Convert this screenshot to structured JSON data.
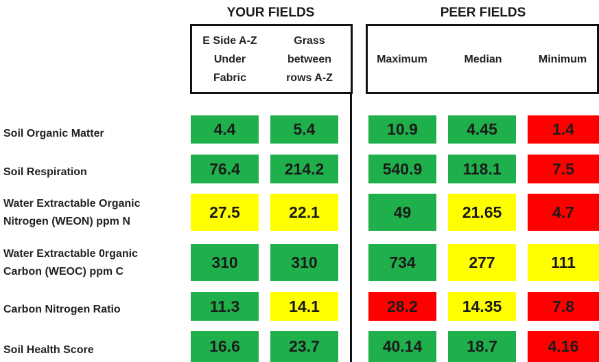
{
  "groups": {
    "your_fields": "YOUR FIELDS",
    "peer_fields": "PEER FIELDS"
  },
  "columns": [
    "E Side A-Z\nUnder\nFabric",
    "Grass\nbetween\nrows A-Z",
    "Maximum",
    "Median",
    "Minimum"
  ],
  "colors": {
    "green": "#1fb04b",
    "yellow": "#ffff00",
    "red": "#ff0000"
  },
  "rows": [
    {
      "label": "Soil Organic Matter",
      "values": [
        "4.4",
        "5.4",
        "10.9",
        "4.45",
        "1.4"
      ],
      "colors": [
        "green",
        "green",
        "green",
        "green",
        "red"
      ]
    },
    {
      "label": "Soil Respiration",
      "values": [
        "76.4",
        "214.2",
        "540.9",
        "118.1",
        "7.5"
      ],
      "colors": [
        "green",
        "green",
        "green",
        "green",
        "red"
      ]
    },
    {
      "label": "Water Extractable Organic\nNitrogen (WEON) ppm N",
      "values": [
        "27.5",
        "22.1",
        "49",
        "21.65",
        "4.7"
      ],
      "colors": [
        "yellow",
        "yellow",
        "green",
        "yellow",
        "red"
      ]
    },
    {
      "label": "Water Extractable 0rganic\nCarbon (WEOC) ppm C",
      "values": [
        "310",
        "310",
        "734",
        "277",
        "111"
      ],
      "colors": [
        "green",
        "green",
        "green",
        "yellow",
        "yellow"
      ]
    },
    {
      "label": "Carbon Nitrogen Ratio",
      "values": [
        "11.3",
        "14.1",
        "28.2",
        "14.35",
        "7.8"
      ],
      "colors": [
        "green",
        "yellow",
        "red",
        "yellow",
        "red"
      ]
    },
    {
      "label": "Soil Health Score",
      "values": [
        "16.6",
        "23.7",
        "40.14",
        "18.7",
        "4.16"
      ],
      "colors": [
        "green",
        "green",
        "green",
        "green",
        "red"
      ]
    }
  ]
}
